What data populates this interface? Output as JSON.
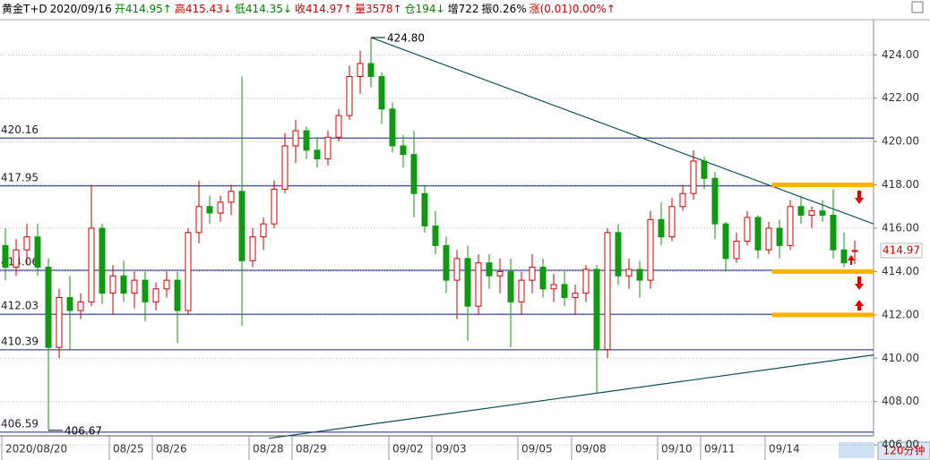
{
  "chart_data": {
    "type": "candlestick",
    "header": [
      "黄金T+D",
      "2020/09/16",
      "开414.95↑",
      "高415.43↓",
      "低414.35↓",
      "收414.97↑",
      "量3578↑",
      "仓194↓",
      "增722",
      "振0.26%",
      "涨(0.01)0.00%↑"
    ],
    "header_colors": [
      "#000000",
      "#000000",
      "#008000",
      "#d00000",
      "#008000",
      "#d00000",
      "#d00000",
      "#008000",
      "#000000",
      "#000000",
      "#d00000"
    ],
    "period": "120分钟",
    "up_color": "#d00000",
    "down_color": "#119911",
    "ylim": [
      406.5,
      425.5
    ],
    "yticks": [
      {
        "value": 406,
        "label": "406.00"
      },
      {
        "value": 408,
        "label": "408.00"
      },
      {
        "value": 410,
        "label": "410.00"
      },
      {
        "value": 412,
        "label": "412.00"
      },
      {
        "value": 414,
        "label": "414.00"
      },
      {
        "value": 416,
        "label": "416.00"
      },
      {
        "value": 418,
        "label": "418.00"
      },
      {
        "value": 420,
        "label": "420.00"
      },
      {
        "value": 422,
        "label": "422.00"
      },
      {
        "value": 424,
        "label": "424.00"
      }
    ],
    "xticks": [
      {
        "value": 0,
        "label": "2020/08/20"
      },
      {
        "value": 10,
        "label": "08/25"
      },
      {
        "value": 14,
        "label": "08/26"
      },
      {
        "value": 23,
        "label": "08/28"
      },
      {
        "value": 27,
        "label": "08/29"
      },
      {
        "value": 36,
        "label": "09/02"
      },
      {
        "value": 40,
        "label": "09/03"
      },
      {
        "value": 48,
        "label": "09/05"
      },
      {
        "value": 53,
        "label": "09/08"
      },
      {
        "value": 61,
        "label": "09/10"
      },
      {
        "value": 65,
        "label": "09/11"
      },
      {
        "value": 71,
        "label": "09/14"
      }
    ],
    "level_lines": [
      420.16,
      417.95,
      414.06,
      412.03,
      410.39,
      406.59
    ],
    "highlight_levels": [
      418,
      414,
      412
    ],
    "highlight_start": 71.3,
    "trend_lines": [
      [
        [
          34,
          424.8
        ],
        [
          80.75,
          416.2
        ]
      ],
      [
        [
          24.5,
          406.3
        ],
        [
          80.75,
          410.15
        ]
      ]
    ],
    "annotations": [
      {
        "index": 34,
        "value": 424.8,
        "label": "424.80"
      },
      {
        "index": 4,
        "value": 406.67,
        "label": "406.67"
      }
    ],
    "last_price": 414.97,
    "ohlc": [
      [
        415.2,
        416.0,
        413.6,
        414.2
      ],
      [
        414.2,
        415.5,
        413.8,
        415.0
      ],
      [
        415.0,
        416.2,
        414.3,
        415.6
      ],
      [
        415.6,
        416.2,
        413.8,
        414.2
      ],
      [
        414.2,
        414.6,
        406.67,
        410.5
      ],
      [
        410.5,
        413.2,
        410.0,
        412.8
      ],
      [
        412.8,
        413.8,
        410.4,
        412.2
      ],
      [
        412.2,
        413.0,
        411.8,
        412.6
      ],
      [
        412.6,
        418.0,
        412.4,
        416.0
      ],
      [
        416.0,
        416.2,
        412.5,
        413.0
      ],
      [
        413.0,
        414.3,
        412.0,
        413.8
      ],
      [
        413.8,
        414.5,
        412.6,
        413.0
      ],
      [
        413.0,
        414.0,
        412.3,
        413.6
      ],
      [
        413.6,
        414.0,
        411.7,
        412.6
      ],
      [
        412.6,
        413.5,
        412.2,
        413.2
      ],
      [
        413.2,
        414.0,
        412.8,
        413.6
      ],
      [
        413.6,
        414.0,
        410.7,
        412.2
      ],
      [
        412.2,
        416.0,
        412.0,
        415.8
      ],
      [
        415.8,
        418.2,
        415.3,
        417.0
      ],
      [
        417.0,
        417.5,
        416.2,
        416.7
      ],
      [
        416.7,
        417.5,
        416.3,
        417.2
      ],
      [
        417.2,
        418.0,
        416.6,
        417.7
      ],
      [
        417.7,
        423.0,
        411.5,
        414.5
      ],
      [
        414.5,
        416.0,
        414.2,
        415.6
      ],
      [
        415.6,
        416.5,
        415.0,
        416.2
      ],
      [
        416.2,
        418.2,
        416.0,
        417.8
      ],
      [
        417.8,
        420.4,
        417.6,
        419.8
      ],
      [
        419.8,
        421.0,
        419.0,
        420.5
      ],
      [
        420.5,
        420.7,
        419.2,
        419.6
      ],
      [
        419.6,
        420.2,
        418.8,
        419.2
      ],
      [
        419.2,
        420.5,
        418.9,
        420.2
      ],
      [
        420.2,
        421.5,
        420.0,
        421.2
      ],
      [
        421.2,
        423.5,
        421.0,
        423.0
      ],
      [
        423.0,
        424.2,
        422.2,
        423.6
      ],
      [
        423.6,
        424.8,
        422.5,
        423.0
      ],
      [
        423.0,
        423.2,
        420.8,
        421.5
      ],
      [
        421.5,
        421.8,
        419.5,
        419.8
      ],
      [
        419.8,
        420.3,
        418.8,
        419.4
      ],
      [
        419.4,
        420.5,
        416.5,
        417.6
      ],
      [
        417.6,
        418.0,
        415.8,
        416.1
      ],
      [
        416.1,
        416.8,
        414.8,
        415.2
      ],
      [
        415.2,
        415.6,
        413.0,
        413.6
      ],
      [
        413.6,
        415.0,
        411.8,
        414.6
      ],
      [
        414.6,
        415.2,
        410.8,
        412.4
      ],
      [
        412.4,
        414.8,
        412.0,
        414.4
      ],
      [
        414.4,
        414.8,
        413.2,
        413.8
      ],
      [
        413.8,
        414.6,
        413.0,
        414.0
      ],
      [
        414.0,
        414.6,
        410.5,
        412.6
      ],
      [
        412.6,
        414.0,
        412.0,
        413.6
      ],
      [
        413.6,
        414.8,
        413.0,
        414.2
      ],
      [
        414.2,
        414.6,
        412.8,
        413.2
      ],
      [
        413.2,
        413.9,
        412.6,
        413.4
      ],
      [
        413.4,
        414.0,
        412.4,
        412.8
      ],
      [
        412.8,
        413.4,
        412.0,
        413.0
      ],
      [
        413.0,
        414.3,
        412.6,
        414.1
      ],
      [
        414.1,
        414.3,
        408.4,
        410.4
      ],
      [
        410.4,
        416.0,
        410.0,
        415.8
      ],
      [
        415.8,
        416.2,
        413.4,
        413.8
      ],
      [
        413.8,
        414.6,
        413.2,
        414.1
      ],
      [
        414.1,
        414.5,
        412.8,
        413.6
      ],
      [
        413.6,
        416.8,
        413.2,
        416.4
      ],
      [
        416.4,
        417.2,
        415.2,
        415.6
      ],
      [
        415.6,
        417.4,
        415.4,
        417.0
      ],
      [
        417.0,
        418.0,
        416.8,
        417.6
      ],
      [
        417.6,
        419.6,
        417.3,
        419.1
      ],
      [
        419.1,
        419.3,
        417.8,
        418.3
      ],
      [
        418.3,
        418.6,
        415.5,
        416.2
      ],
      [
        416.2,
        416.3,
        414.0,
        414.6
      ],
      [
        414.6,
        415.8,
        414.4,
        415.4
      ],
      [
        415.4,
        416.8,
        415.2,
        416.5
      ],
      [
        416.5,
        416.6,
        414.6,
        415.0
      ],
      [
        415.0,
        416.3,
        414.8,
        416.0
      ],
      [
        416.0,
        416.4,
        414.6,
        415.2
      ],
      [
        415.2,
        417.3,
        415.0,
        417.0
      ],
      [
        417.0,
        417.5,
        416.2,
        416.6
      ],
      [
        416.6,
        417.0,
        416.0,
        416.8
      ],
      [
        416.8,
        417.3,
        416.3,
        416.6
      ],
      [
        416.6,
        417.8,
        414.6,
        415.0
      ],
      [
        415.0,
        415.8,
        414.2,
        414.4
      ],
      [
        414.95,
        415.43,
        414.35,
        414.97
      ]
    ]
  }
}
